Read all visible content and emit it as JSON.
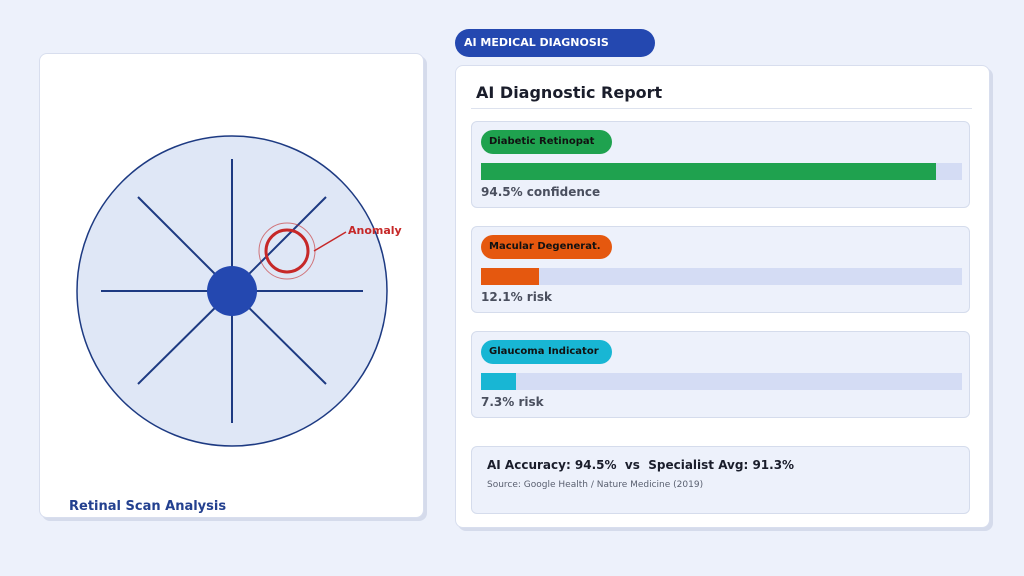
{
  "header": {
    "badge": "AI MEDICAL DIAGNOSIS"
  },
  "scan": {
    "annotation": "Anomaly",
    "caption": "Retinal Scan Analysis"
  },
  "report": {
    "title": "AI Diagnostic Report",
    "findings": [
      {
        "label": "Diabetic Retinopat",
        "value_text": "94.5% confidence",
        "fraction": 0.945,
        "color": "#1fa24f"
      },
      {
        "label": "Macular Degenerat.",
        "value_text": "12.1% risk",
        "fraction": 0.121,
        "color": "#e5580f"
      },
      {
        "label": "Glaucoma Indicator",
        "value_text": "7.3% risk",
        "fraction": 0.073,
        "color": "#18b6d4"
      }
    ],
    "summary": "AI Accuracy: 94.5%  vs  Specialist Avg: 91.3%",
    "source": "Source: Google Health / Nature Medicine (2019)"
  },
  "colors": {
    "accent": "#2448b0",
    "anomaly": "#c62828"
  }
}
